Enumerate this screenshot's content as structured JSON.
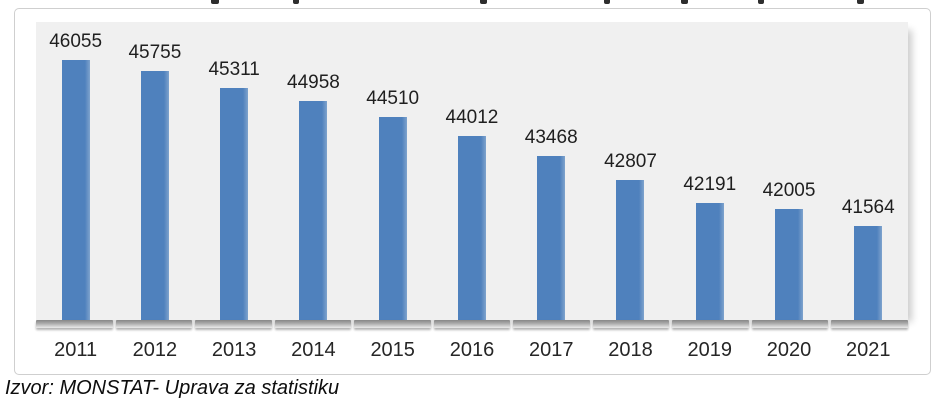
{
  "chart_data": {
    "type": "bar",
    "categories": [
      "2011",
      "2012",
      "2013",
      "2014",
      "2015",
      "2016",
      "2017",
      "2018",
      "2019",
      "2020",
      "2021"
    ],
    "values": [
      46055,
      45755,
      45311,
      44958,
      44510,
      44012,
      43468,
      42807,
      42191,
      42005,
      41564
    ],
    "xlabel": "",
    "ylabel": "",
    "ylim": [
      39000,
      47100
    ],
    "grid": false,
    "legend": "none",
    "data_labels": true,
    "bar_color": "#4F81BD",
    "bar_highlight_color": "#7FA3CD",
    "plot_background": "#F0F0F0",
    "label_color": "#1F1F1F"
  },
  "source_note": "Izvor: MONSTAT- Uprava za statistiku"
}
